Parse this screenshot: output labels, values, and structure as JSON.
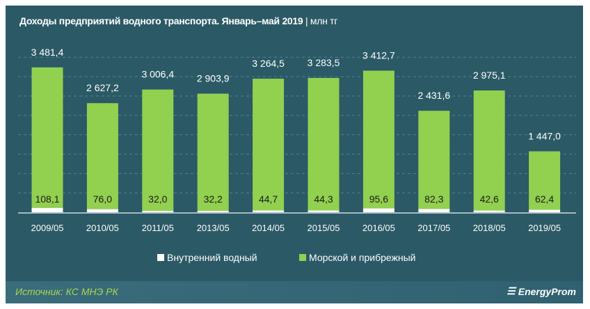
{
  "chart_data": {
    "type": "bar",
    "stacked": true,
    "title": "Доходы предприятий водного транспорта. Январь–май 2019",
    "unit": "| млн тг",
    "categories": [
      "2009/05",
      "2010/05",
      "2011/05",
      "2013/05",
      "2014/05",
      "2015/05",
      "2016/05",
      "2017/05",
      "2018/05",
      "2019/05"
    ],
    "series": [
      {
        "name": "Внутренний водный",
        "color": "#ffffff",
        "values": [
          108.1,
          76.0,
          32.0,
          32.2,
          44.7,
          44.3,
          95.6,
          82.3,
          42.6,
          62.4
        ],
        "labels": [
          "108,1",
          "76,0",
          "32,0",
          "32,2",
          "44,7",
          "44,3",
          "95,6",
          "82,3",
          "42,6",
          "62,4"
        ]
      },
      {
        "name": "Морской и прибрежный",
        "color": "#92d050",
        "values": [
          3481.4,
          2627.2,
          3006.4,
          2903.9,
          3264.5,
          3283.5,
          3412.7,
          2431.6,
          2975.1,
          1447.0
        ],
        "labels": [
          "3 481,4",
          "2 627,2",
          "3 006,4",
          "2 903,9",
          "3 264,5",
          "3 283,5",
          "3 412,7",
          "2 431,6",
          "2 975,1",
          "1 447,0"
        ]
      }
    ],
    "ylim": [
      0,
      4000
    ],
    "grid": true,
    "legend": "bottom"
  },
  "footer": {
    "source": "Источник: КС МНЭ РК",
    "brand": "EnergyProm"
  }
}
